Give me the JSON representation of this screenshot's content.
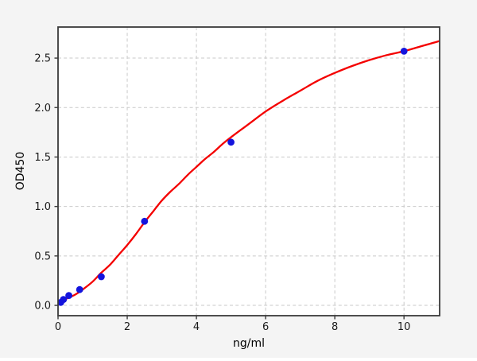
{
  "chart_data": {
    "type": "scatter",
    "title": "",
    "xlabel": "ng/ml",
    "ylabel": "OD450",
    "xlim": [
      0,
      11.03
    ],
    "ylim": [
      -0.104,
      2.814
    ],
    "x_ticks": {
      "values": [
        0,
        2,
        4,
        6,
        8,
        10
      ],
      "labels": [
        "0",
        "2",
        "4",
        "6",
        "8",
        "10"
      ]
    },
    "y_ticks": {
      "values": [
        0,
        0.5,
        1.0,
        1.5,
        2.0,
        2.5
      ],
      "labels": [
        "0.0",
        "0.5",
        "1.0",
        "1.5",
        "2.0",
        "2.5"
      ]
    },
    "grid": {
      "visible": true,
      "style": "dashed"
    },
    "legend_position": "none",
    "series": [
      {
        "name": "standard-points",
        "type": "scatter",
        "marker": "circle",
        "marker_radius": 4.4,
        "color": "#1414dd",
        "points": [
          [
            0.078,
            0.03
          ],
          [
            0.156,
            0.06
          ],
          [
            0.3125,
            0.1
          ],
          [
            0.625,
            0.16
          ],
          [
            1.25,
            0.29
          ],
          [
            2.5,
            0.85
          ],
          [
            5,
            1.65
          ],
          [
            10,
            2.57
          ]
        ]
      },
      {
        "name": "4pl-fit-curve",
        "type": "line",
        "line_width": 2.3,
        "color": "#f40000",
        "points": [
          [
            0,
            0.04
          ],
          [
            0.25,
            0.07
          ],
          [
            0.5,
            0.11
          ],
          [
            0.75,
            0.17
          ],
          [
            1,
            0.24
          ],
          [
            1.25,
            0.33
          ],
          [
            1.5,
            0.41
          ],
          [
            1.75,
            0.51
          ],
          [
            2,
            0.61
          ],
          [
            2.25,
            0.72
          ],
          [
            2.5,
            0.84
          ],
          [
            2.75,
            0.95
          ],
          [
            3,
            1.06
          ],
          [
            3.25,
            1.15
          ],
          [
            3.5,
            1.23
          ],
          [
            3.75,
            1.32
          ],
          [
            4,
            1.4
          ],
          [
            4.25,
            1.48
          ],
          [
            4.5,
            1.55
          ],
          [
            4.75,
            1.63
          ],
          [
            5,
            1.7
          ],
          [
            5.5,
            1.83
          ],
          [
            6,
            1.96
          ],
          [
            6.5,
            2.07
          ],
          [
            7,
            2.17
          ],
          [
            7.5,
            2.27
          ],
          [
            8,
            2.35
          ],
          [
            8.5,
            2.42
          ],
          [
            9,
            2.48
          ],
          [
            9.5,
            2.53
          ],
          [
            10,
            2.57
          ],
          [
            10.5,
            2.62
          ],
          [
            11,
            2.67
          ]
        ]
      }
    ],
    "colors": {
      "background": "#f4f4f4",
      "plot_background": "#ffffff",
      "grid": "#c9c9c9",
      "spine": "#3a3a3a",
      "tick": "#3a3a3a",
      "tick_label": "#1a1a1a",
      "axis_label": "#1a1a1a"
    }
  }
}
